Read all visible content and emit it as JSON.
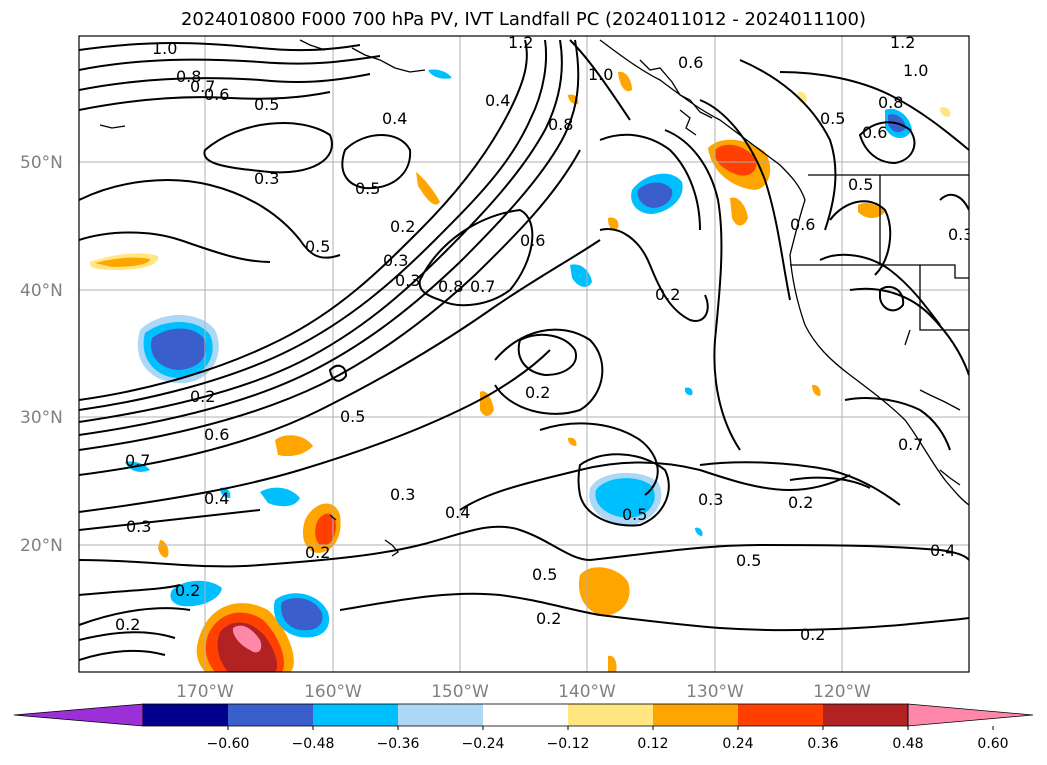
{
  "title": "2024010800 F000 700 hPa PV, IVT Landfall PC (2024011012 - 2024011100)",
  "map": {
    "lat_labels": [
      "50°N",
      "40°N",
      "30°N",
      "20°N"
    ],
    "lon_labels": [
      "170°W",
      "160°W",
      "150°W",
      "140°W",
      "130°W",
      "120°W"
    ],
    "contour_labels": [
      "1.0",
      "0.8",
      "0.7",
      "0.6",
      "0.5",
      "0.4",
      "0.3",
      "0.5",
      "0.5",
      "0.2",
      "0.3",
      "0.3",
      "0.8",
      "0.7",
      "0.6",
      "0.4",
      "0.8",
      "1.2",
      "1.0",
      "0.6",
      "1.2",
      "1.0",
      "0.8",
      "0.5",
      "0.6",
      "0.5",
      "0.6",
      "0.3",
      "0.2",
      "0.2",
      "0.5",
      "0.2",
      "0.6",
      "0.7",
      "0.4",
      "0.3",
      "0.2",
      "0.3",
      "0.2",
      "0.4",
      "0.5",
      "0.3",
      "0.2",
      "0.5",
      "0.5",
      "0.2",
      "0.2",
      "0.4",
      "0.7"
    ]
  },
  "colorbar": {
    "colors": [
      "#9b30d9",
      "#00008b",
      "#3a5fcd",
      "#00bfff",
      "#add8f5",
      "#ffffff",
      "#ffe680",
      "#ffa500",
      "#ff4000",
      "#b22222",
      "#ff88aa"
    ],
    "ticks": [
      "−0.60",
      "−0.48",
      "−0.36",
      "−0.24",
      "−0.12",
      "0.12",
      "0.24",
      "0.36",
      "0.48",
      "0.60"
    ]
  }
}
